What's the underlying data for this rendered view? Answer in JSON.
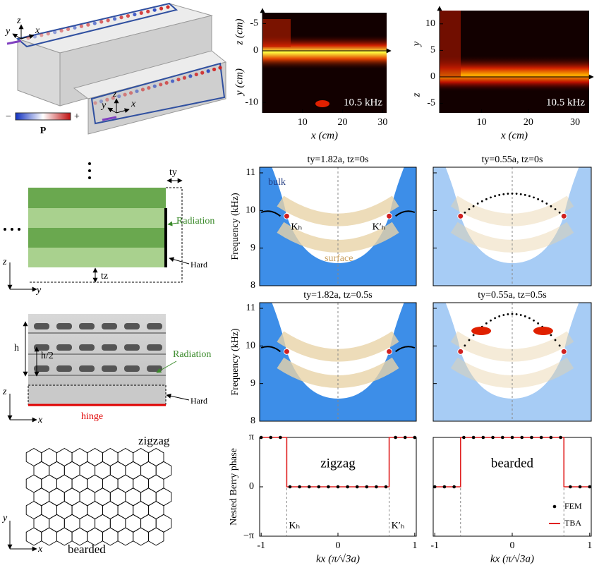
{
  "panel_a": {
    "axes_1": {
      "x": "x",
      "y": "y",
      "z": "z"
    },
    "axes_2": {
      "x": "x",
      "y": "y",
      "z": "z"
    },
    "colorbar": {
      "minus": "−",
      "plus": "+",
      "label": "P"
    }
  },
  "diagram_b": {
    "ty": "ty",
    "radiation": "Radiation",
    "hard": "Hard",
    "tz": "tz",
    "axis_z": "z",
    "axis_y": "y"
  },
  "photo_c": {
    "h": "h",
    "h2": "h/2",
    "radiation": "Radiation",
    "hard": "Hard",
    "hinge": "hinge",
    "axis_z": "z",
    "axis_x": "x"
  },
  "lattice_d": {
    "top": "zigzag",
    "bottom": "bearded",
    "axis_y": "y",
    "axis_x": "x"
  },
  "chart_data": [
    {
      "type": "heatmap",
      "xlabel": "x (cm)",
      "annotation": "10.5 kHz",
      "xlim": [
        0,
        31
      ],
      "xticks": [
        10,
        20,
        30
      ],
      "upper_axis": {
        "label": "z (cm)",
        "lim": [
          -7,
          0
        ],
        "ticks": [
          -5,
          0
        ]
      },
      "lower_axis": {
        "label": "y (cm)",
        "lim": [
          0,
          -12
        ],
        "ticks": [
          -10
        ]
      }
    },
    {
      "type": "heatmap",
      "xlabel": "x (cm)",
      "annotation": "10.5 kHz",
      "xlim": [
        1,
        33
      ],
      "xticks": [
        10,
        20,
        30
      ],
      "upper_axis": {
        "label": "y",
        "lim": [
          12.5,
          0
        ],
        "ticks": [
          10,
          5,
          0
        ]
      },
      "lower_axis": {
        "label": "z",
        "lim": [
          0,
          -6.8
        ],
        "ticks": [
          -5
        ]
      }
    },
    {
      "type": "band",
      "title": "ty=1.82a, tz=0s",
      "ylabel": "Frequency (kHz)",
      "xlim": [
        -1.02,
        1.02
      ],
      "ylim": [
        8,
        11.15
      ],
      "yticks": [
        8,
        9,
        10,
        11
      ],
      "bulk_label": "bulk",
      "surface_label": "surface",
      "k_points": [
        {
          "x": -0.667,
          "y": 9.85,
          "label": "Kₕ"
        },
        {
          "x": 0.667,
          "y": 9.85,
          "label": "K′ₕ"
        }
      ]
    },
    {
      "type": "band",
      "title": "ty=0.55a, tz=0s",
      "xlim": [
        -1.02,
        1.02
      ],
      "ylim": [
        8,
        11.15
      ],
      "yticks": [
        8,
        9,
        10,
        11
      ],
      "k_points": [
        {
          "x": -0.667,
          "y": 9.85
        },
        {
          "x": 0.667,
          "y": 9.85
        }
      ]
    },
    {
      "type": "band",
      "title": "ty=1.82a, tz=0.5s",
      "ylabel": "Frequency (kHz)",
      "xlim": [
        -1.02,
        1.02
      ],
      "ylim": [
        8,
        11.15
      ],
      "yticks": [
        8,
        9,
        10,
        11
      ],
      "k_points": [
        {
          "x": -0.667,
          "y": 9.85
        },
        {
          "x": 0.667,
          "y": 9.85
        }
      ]
    },
    {
      "type": "band",
      "title": "ty=0.55a, tz=0.5s",
      "xlim": [
        -1.02,
        1.02
      ],
      "ylim": [
        8,
        11.15
      ],
      "yticks": [
        8,
        9,
        10,
        11
      ],
      "k_points": [
        {
          "x": -0.667,
          "y": 9.85
        },
        {
          "x": 0.667,
          "y": 9.85
        }
      ]
    },
    {
      "type": "step",
      "ylabel": "Nested Berry phase",
      "xlabel": "kx (π/√3a)",
      "annotation": "zigzag",
      "xlim": [
        -1.02,
        1.02
      ],
      "xticks": [
        -1,
        0,
        1
      ],
      "ylim": [
        -1,
        1
      ],
      "yticks": [
        {
          "value": 1,
          "label": "π"
        },
        0,
        {
          "value": -1,
          "label": "−π"
        }
      ],
      "k_lines": [
        {
          "x": -0.667,
          "label": "Kₕ"
        },
        {
          "x": 0.667,
          "label": "K′ₕ"
        }
      ],
      "series": [
        {
          "color": "#000000",
          "x": [
            -1,
            -0.875,
            -0.75,
            -0.625,
            -0.5,
            -0.375,
            -0.25,
            -0.125,
            0,
            0.125,
            0.25,
            0.375,
            0.5,
            0.625,
            0.75,
            0.875,
            1
          ],
          "values": [
            1,
            1,
            1,
            0,
            0,
            0,
            0,
            0,
            0,
            0,
            0,
            0,
            0,
            0,
            1,
            1,
            1
          ]
        },
        {
          "color": "#e02020",
          "x": [
            -1,
            -0.667,
            -0.667,
            0.667,
            0.667,
            1
          ],
          "values": [
            1,
            1,
            0,
            0,
            1,
            1
          ]
        }
      ]
    },
    {
      "type": "step",
      "xlabel": "kx (π/√3a)",
      "annotation": "bearded",
      "xlim": [
        -1.02,
        1.02
      ],
      "xticks": [
        -1,
        0,
        1
      ],
      "ylim": [
        -1,
        1
      ],
      "yticks": [
        {
          "value": 1,
          "label": "π"
        },
        0,
        {
          "value": -1,
          "label": "−π"
        }
      ],
      "k_lines": [
        {
          "x": -0.667
        },
        {
          "x": 0.667
        }
      ],
      "series": [
        {
          "name": "FEM",
          "color": "#000000",
          "x": [
            -1,
            -0.875,
            -0.75,
            -0.625,
            -0.5,
            -0.375,
            -0.25,
            -0.125,
            0,
            0.125,
            0.25,
            0.375,
            0.5,
            0.625,
            0.75,
            0.875,
            1
          ],
          "values": [
            0,
            0,
            0,
            1,
            1,
            1,
            1,
            1,
            1,
            1,
            1,
            1,
            1,
            1,
            0,
            0,
            0
          ]
        },
        {
          "name": "TBA",
          "color": "#e02020",
          "x": [
            -1,
            -0.667,
            -0.667,
            0.667,
            0.667,
            1
          ],
          "values": [
            0,
            0,
            1,
            1,
            0,
            0
          ]
        }
      ]
    }
  ]
}
